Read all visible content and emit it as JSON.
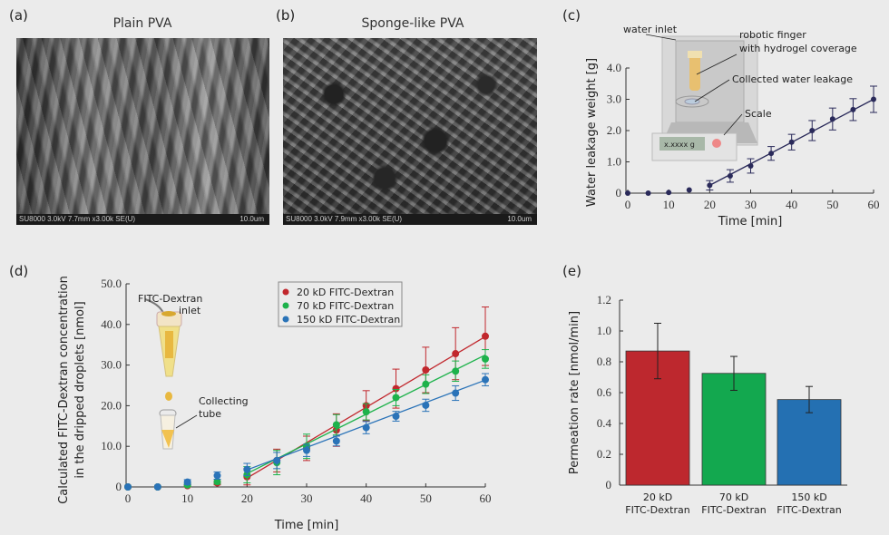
{
  "panels": {
    "a": {
      "label": "(a)",
      "title": "Plain PVA",
      "sem_info": "SU8000 3.0kV 7.7mm x3.00k SE(U)",
      "scale_bar": "10.0um"
    },
    "b": {
      "label": "(b)",
      "title": "Sponge-like PVA",
      "sem_info": "SU8000 3.0kV 7.9mm x3.00k SE(U)",
      "scale_bar": "10.0um"
    },
    "c": {
      "label": "(c)",
      "annotations": {
        "water_inlet": "water inlet",
        "finger_1": "robotic finger",
        "finger_2": "with hydrogel coverage",
        "leakage": "Collected water leakage",
        "scale": "Scale",
        "display": "x.xxxx g"
      }
    },
    "d": {
      "label": "(d)",
      "annotations": {
        "inlet_1": "FITC-Dextran",
        "inlet_2": "inlet",
        "tube_1": "Collecting",
        "tube_2": "tube"
      }
    },
    "e": {
      "label": "(e)"
    }
  },
  "chart_data": [
    {
      "panel": "c",
      "type": "line",
      "xlabel": "Time [min]",
      "ylabel": "Water leakage weight [g]",
      "xlim": [
        0,
        60
      ],
      "ylim": [
        0,
        4.0
      ],
      "xticks": [
        "0",
        "10",
        "20",
        "30",
        "40",
        "50",
        "60"
      ],
      "yticks": [
        "0",
        "1.0",
        "2.0",
        "3.0",
        "4.0"
      ],
      "grid": false,
      "series": [
        {
          "color": "#2a2a5a",
          "x": [
            0,
            5,
            10,
            15,
            20,
            25,
            30,
            35,
            40,
            45,
            50,
            55,
            60
          ],
          "y": [
            0,
            0,
            0.02,
            0.1,
            0.25,
            0.55,
            0.87,
            1.27,
            1.63,
            2.0,
            2.37,
            2.67,
            3.0
          ],
          "err": [
            0,
            0,
            0,
            0,
            0.15,
            0.2,
            0.23,
            0.22,
            0.25,
            0.32,
            0.35,
            0.35,
            0.42
          ],
          "fit": [
            [
              20,
              0.25
            ],
            [
              60,
              3.0
            ]
          ]
        }
      ]
    },
    {
      "panel": "d",
      "type": "line",
      "xlabel": "Time [min]",
      "ylabel": [
        "Calculated FITC-Dextran concentration",
        "in the dripped droplets [nmol]"
      ],
      "xlim": [
        0,
        60
      ],
      "ylim": [
        0,
        50
      ],
      "xticks": [
        "0",
        "10",
        "20",
        "30",
        "40",
        "50",
        "60"
      ],
      "yticks": [
        "0",
        "10.0",
        "20.0",
        "30.0",
        "40.0",
        "50.0"
      ],
      "grid": false,
      "legend": "top-center",
      "series": [
        {
          "name": "20 kD FITC-Dextran",
          "color": "#c1272d",
          "x": [
            0,
            5,
            10,
            15,
            20,
            25,
            30,
            35,
            40,
            45,
            50,
            55,
            60
          ],
          "y": [
            0,
            0,
            0.3,
            1.0,
            2.5,
            6.5,
            9.5,
            14,
            20,
            24.2,
            28.8,
            32.8,
            37.1
          ],
          "err": [
            0,
            0,
            0.3,
            0.5,
            2,
            2.8,
            3,
            4,
            3.7,
            4.8,
            5.6,
            6.4,
            7.2
          ],
          "fit": [
            [
              20,
              2.2
            ],
            [
              60,
              37
            ]
          ]
        },
        {
          "name": "70 kD FITC-Dextran",
          "color": "#1db24b",
          "x": [
            0,
            5,
            10,
            15,
            20,
            25,
            30,
            35,
            40,
            45,
            50,
            55,
            60
          ],
          "y": [
            0,
            0,
            0.5,
            1.3,
            3,
            6,
            10,
            15.3,
            18.5,
            22,
            25.3,
            28.5,
            31.5
          ],
          "err": [
            0,
            0,
            0.4,
            0.6,
            2,
            3,
            3,
            2.5,
            2,
            2,
            2.3,
            2.5,
            2.3
          ],
          "fit": [
            [
              20,
              3.3
            ],
            [
              60,
              32.5
            ]
          ]
        },
        {
          "name": "150 kD FITC-Dextran",
          "color": "#2a73b8",
          "x": [
            0,
            5,
            10,
            15,
            20,
            25,
            30,
            35,
            40,
            45,
            50,
            55,
            60
          ],
          "y": [
            0,
            0,
            1.2,
            2.8,
            4.3,
            6.5,
            9,
            11.3,
            14.6,
            17.4,
            20.1,
            23.1,
            26.4
          ],
          "err": [
            0,
            0,
            0.6,
            0.9,
            1.5,
            2,
            1.5,
            1.2,
            1.5,
            1.2,
            1.5,
            1.8,
            1.5
          ],
          "fit": [
            [
              20,
              4.2
            ],
            [
              60,
              26.3
            ]
          ]
        }
      ]
    },
    {
      "panel": "e",
      "type": "bar",
      "ylabel": "Permeation rate [nmol/min]",
      "ylim": [
        0,
        1.2
      ],
      "yticks": [
        "0",
        "0.2",
        "0.4",
        "0.6",
        "0.8",
        "1.0",
        "1.2"
      ],
      "categories": [
        [
          "20 kD",
          "FITC-Dextran"
        ],
        [
          "70 kD",
          "FITC-Dextran"
        ],
        [
          "150 kD",
          "FITC-Dextran"
        ]
      ],
      "values": [
        0.87,
        0.725,
        0.555
      ],
      "err": [
        0.18,
        0.11,
        0.085
      ],
      "colors": [
        "#bd282e",
        "#13a84f",
        "#2470b2"
      ],
      "grid": false
    }
  ]
}
